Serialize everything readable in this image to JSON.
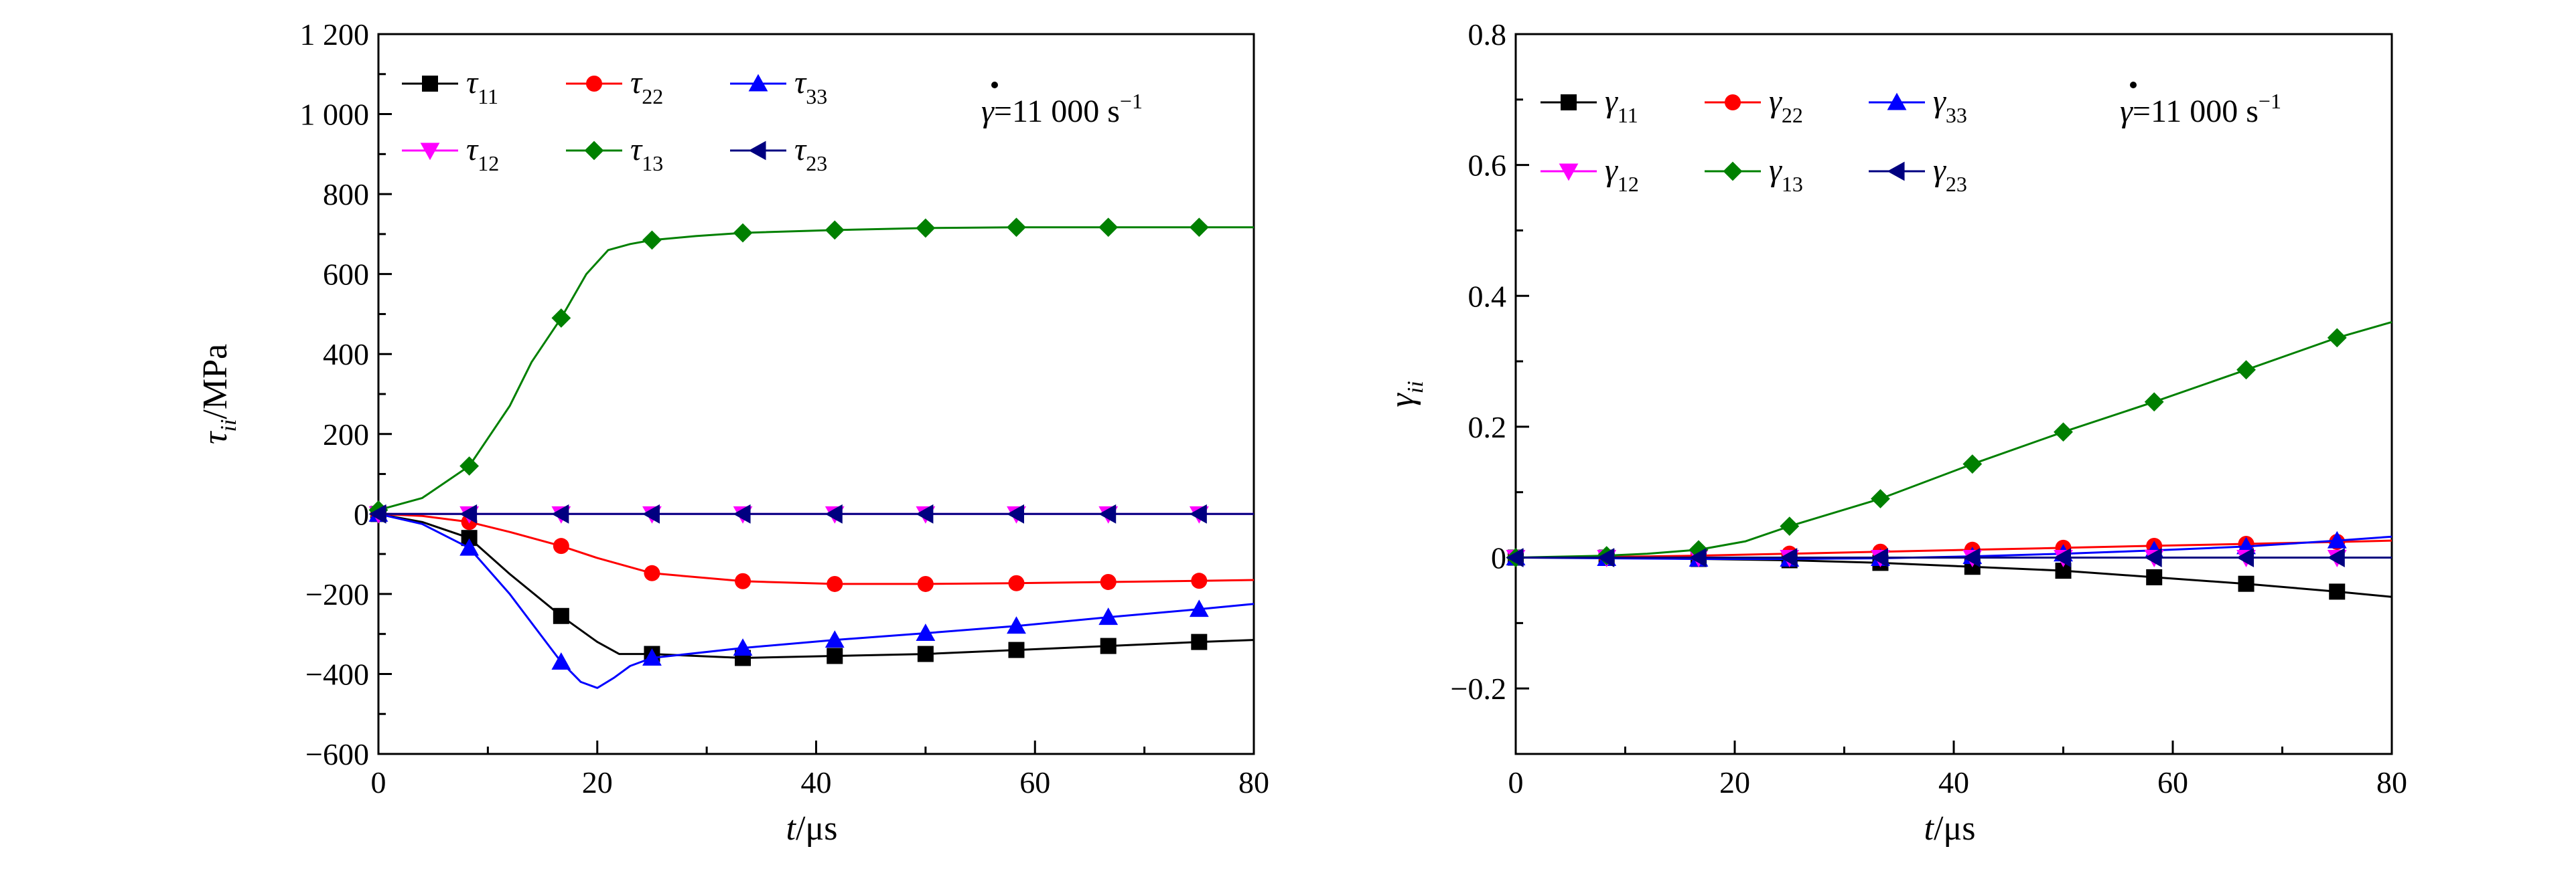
{
  "chart_data": [
    {
      "type": "line",
      "xlabel_var": "t",
      "xlabel_unit": "/μs",
      "ylabel_var": "τ",
      "ylabel_sub": "ii",
      "ylabel_unit": "/MPa",
      "xlim": [
        0,
        80
      ],
      "ylim": [
        -600,
        1200
      ],
      "xticks": [
        0,
        20,
        40,
        60,
        80
      ],
      "xtick_labels": [
        "0",
        "20",
        "40",
        "60",
        "80"
      ],
      "yticks": [
        -600,
        -400,
        -200,
        0,
        200,
        400,
        600,
        800,
        1000,
        1200
      ],
      "ytick_labels": [
        "−600",
        "−400",
        "−200",
        "0",
        "200",
        "400",
        "600",
        "800",
        "1 000",
        "1 200"
      ],
      "annotation": {
        "symbol": "γ",
        "text": "=11 000 s",
        "sup": "−1"
      },
      "legend_position": "top-left",
      "grid": false,
      "series": [
        {
          "sym": "τ",
          "sub": "11",
          "color": "#000000",
          "marker": "square",
          "x": [
            0,
            4,
            8.3,
            12,
            16.7,
            20,
            22,
            25,
            33.3,
            41.7,
            50,
            58.3,
            66.7,
            75,
            80
          ],
          "y": [
            0,
            -20,
            -60,
            -150,
            -255,
            -320,
            -350,
            -350,
            -360,
            -355,
            -350,
            -340,
            -330,
            -320,
            -315
          ],
          "marker_x": [
            0,
            8.3,
            16.7,
            25,
            33.3,
            41.7,
            50,
            58.3,
            66.7,
            75
          ]
        },
        {
          "sym": "τ",
          "sub": "22",
          "color": "#ff0000",
          "marker": "circle",
          "x": [
            0,
            4,
            8.3,
            12,
            16.7,
            20,
            25,
            33.3,
            41.7,
            50,
            58.3,
            66.7,
            75,
            80
          ],
          "y": [
            0,
            -5,
            -20,
            -45,
            -80,
            -110,
            -148,
            -168,
            -175,
            -175,
            -173,
            -170,
            -167,
            -165
          ],
          "marker_x": [
            0,
            8.3,
            16.7,
            25,
            33.3,
            41.7,
            50,
            58.3,
            66.7,
            75
          ]
        },
        {
          "sym": "τ",
          "sub": "33",
          "color": "#0000ff",
          "marker": "triangle-up",
          "x": [
            0,
            4,
            8.3,
            12,
            16.7,
            18.5,
            20,
            21.5,
            23,
            25,
            33.3,
            41.7,
            50,
            58.3,
            66.7,
            75,
            80
          ],
          "y": [
            0,
            -25,
            -85,
            -200,
            -370,
            -420,
            -435,
            -410,
            -380,
            -360,
            -335,
            -315,
            -298,
            -280,
            -258,
            -238,
            -225
          ],
          "marker_x": [
            0,
            8.3,
            16.7,
            25,
            33.3,
            41.7,
            50,
            58.3,
            66.7,
            75
          ]
        },
        {
          "sym": "τ",
          "sub": "12",
          "color": "#ff00ff",
          "marker": "triangle-down",
          "x": [
            0,
            80
          ],
          "y": [
            0,
            0
          ],
          "marker_x": [
            0,
            8.3,
            16.7,
            25,
            33.3,
            41.7,
            50,
            58.3,
            66.7,
            75
          ]
        },
        {
          "sym": "τ",
          "sub": "13",
          "color": "#008000",
          "marker": "diamond",
          "x": [
            0,
            4,
            8.3,
            12,
            14,
            16.7,
            19,
            21,
            23,
            25,
            29,
            33.3,
            41.7,
            50,
            58.3,
            66.7,
            75,
            80
          ],
          "y": [
            10,
            40,
            120,
            270,
            380,
            490,
            600,
            660,
            675,
            685,
            695,
            703,
            710,
            715,
            717,
            717,
            717,
            717
          ],
          "marker_x": [
            0,
            8.3,
            16.7,
            25,
            33.3,
            41.7,
            50,
            58.3,
            66.7,
            75
          ]
        },
        {
          "sym": "τ",
          "sub": "23",
          "color": "#000080",
          "marker": "triangle-left",
          "x": [
            0,
            80
          ],
          "y": [
            0,
            0
          ],
          "marker_x": [
            0,
            8.3,
            16.7,
            25,
            33.3,
            41.7,
            50,
            58.3,
            66.7,
            75
          ]
        }
      ]
    },
    {
      "type": "line",
      "xlabel_var": "t",
      "xlabel_unit": "/μs",
      "ylabel_var": "γ",
      "ylabel_sub": "ii",
      "ylabel_unit": "",
      "xlim": [
        0,
        80
      ],
      "ylim": [
        -0.3,
        0.8
      ],
      "xticks": [
        0,
        20,
        40,
        60,
        80
      ],
      "xtick_labels": [
        "0",
        "20",
        "40",
        "60",
        "80"
      ],
      "yticks": [
        -0.2,
        0,
        0.2,
        0.4,
        0.6,
        0.8
      ],
      "ytick_labels": [
        "−0.2",
        "0",
        "0.2",
        "0.4",
        "0.6",
        "0.8"
      ],
      "annotation": {
        "symbol": "γ",
        "text": "=11 000 s",
        "sup": "−1"
      },
      "legend_position": "top-left",
      "grid": false,
      "series": [
        {
          "sym": "γ",
          "sub": "11",
          "color": "#000000",
          "marker": "square",
          "x": [
            0,
            8.3,
            16.7,
            25,
            33.3,
            41.7,
            50,
            58.3,
            66.7,
            75,
            80
          ],
          "y": [
            0,
            0,
            -0.002,
            -0.004,
            -0.008,
            -0.014,
            -0.02,
            -0.03,
            -0.04,
            -0.052,
            -0.06
          ],
          "marker_x": [
            0,
            8.3,
            16.7,
            25,
            33.3,
            41.7,
            50,
            58.3,
            66.7,
            75
          ]
        },
        {
          "sym": "γ",
          "sub": "22",
          "color": "#ff0000",
          "marker": "circle",
          "x": [
            0,
            8.3,
            16.7,
            25,
            33.3,
            41.7,
            50,
            58.3,
            66.7,
            75,
            80
          ],
          "y": [
            0,
            0.001,
            0.003,
            0.006,
            0.009,
            0.012,
            0.015,
            0.018,
            0.021,
            0.024,
            0.026
          ],
          "marker_x": [
            0,
            8.3,
            16.7,
            25,
            33.3,
            41.7,
            50,
            58.3,
            66.7,
            75
          ]
        },
        {
          "sym": "γ",
          "sub": "33",
          "color": "#0000ff",
          "marker": "triangle-up",
          "x": [
            0,
            8.3,
            16.7,
            25,
            33.3,
            41.7,
            50,
            58.3,
            66.7,
            75,
            80
          ],
          "y": [
            0,
            -0.001,
            -0.002,
            -0.002,
            -0.001,
            0.002,
            0.006,
            0.011,
            0.017,
            0.026,
            0.032
          ],
          "marker_x": [
            0,
            8.3,
            16.7,
            25,
            33.3,
            41.7,
            50,
            58.3,
            66.7,
            75
          ]
        },
        {
          "sym": "γ",
          "sub": "12",
          "color": "#ff00ff",
          "marker": "triangle-down",
          "x": [
            0,
            80
          ],
          "y": [
            0,
            0
          ],
          "marker_x": [
            0,
            8.3,
            16.7,
            25,
            33.3,
            41.7,
            50,
            58.3,
            66.7,
            75
          ]
        },
        {
          "sym": "γ",
          "sub": "13",
          "color": "#008000",
          "marker": "diamond",
          "x": [
            0,
            8.3,
            12,
            16.7,
            21,
            25,
            33.3,
            41.7,
            50,
            58.3,
            66.7,
            75,
            80
          ],
          "y": [
            0,
            0.003,
            0.006,
            0.012,
            0.025,
            0.048,
            0.09,
            0.143,
            0.192,
            0.238,
            0.287,
            0.336,
            0.36
          ],
          "marker_x": [
            0,
            8.3,
            16.7,
            25,
            33.3,
            41.7,
            50,
            58.3,
            66.7,
            75
          ]
        },
        {
          "sym": "γ",
          "sub": "23",
          "color": "#000080",
          "marker": "triangle-left",
          "x": [
            0,
            80
          ],
          "y": [
            0,
            0
          ],
          "marker_x": [
            0,
            8.3,
            16.7,
            25,
            33.3,
            41.7,
            50,
            58.3,
            66.7,
            75
          ]
        }
      ]
    }
  ]
}
